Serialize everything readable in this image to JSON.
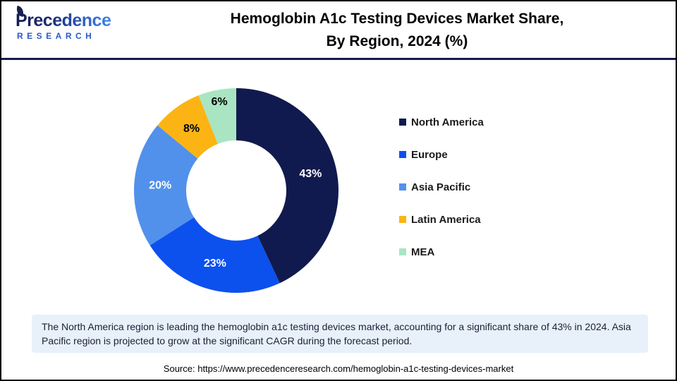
{
  "header": {
    "logo": {
      "name": "Precedence",
      "subname": "RESEARCH"
    },
    "title_line1": "Hemoglobin A1c Testing Devices Market Share,",
    "title_line2": "By Region, 2024 (%)"
  },
  "chart_data": {
    "type": "pie",
    "subtype": "donut",
    "title": "Hemoglobin A1c Testing Devices Market Share, By Region, 2024 (%)",
    "unit": "%",
    "categories": [
      "North America",
      "Europe",
      "Asia Pacific",
      "Latin America",
      "MEA"
    ],
    "values": [
      43,
      23,
      20,
      8,
      6
    ],
    "labels": [
      "43%",
      "23%",
      "20%",
      "8%",
      "6%"
    ],
    "colors": [
      "#111A4E",
      "#0C51EE",
      "#5191EB",
      "#FBB414",
      "#A9E5C2"
    ],
    "label_colors": [
      "#FFFFFF",
      "#FFFFFF",
      "#FFFFFF",
      "#000000",
      "#000000"
    ],
    "start_angle_deg": 0,
    "direction": "clockwise",
    "donut_hole_ratio": 0.49,
    "legend_position": "right",
    "grid": false
  },
  "note": {
    "text": "The North America region is leading the hemoglobin a1c testing devices market, accounting for a significant share of 43% in 2024. Asia Pacific region is projected to grow at the significant CAGR during the forecast period."
  },
  "source": {
    "text": "Source: https://www.precedenceresearch.com/hemoglobin-a1c-testing-devices-market"
  }
}
